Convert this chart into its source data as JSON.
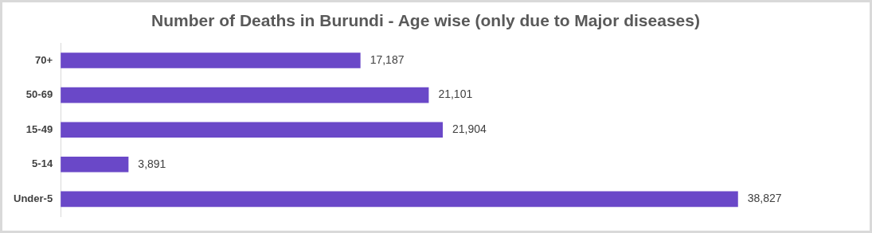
{
  "chart_data": {
    "type": "bar",
    "orientation": "horizontal",
    "title": "Number of Deaths in Burundi - Age wise (only due to Major diseases)",
    "categories": [
      "70+",
      "50-69",
      "15-49",
      "5-14",
      "Under-5"
    ],
    "values": [
      17187,
      21101,
      21904,
      3891,
      38827
    ],
    "value_labels": [
      "17,187",
      "21,101",
      "21,904",
      "3,891",
      "38,827"
    ],
    "color": "#6a48c8",
    "grid": false,
    "legend": false,
    "tick_labels": "y"
  }
}
